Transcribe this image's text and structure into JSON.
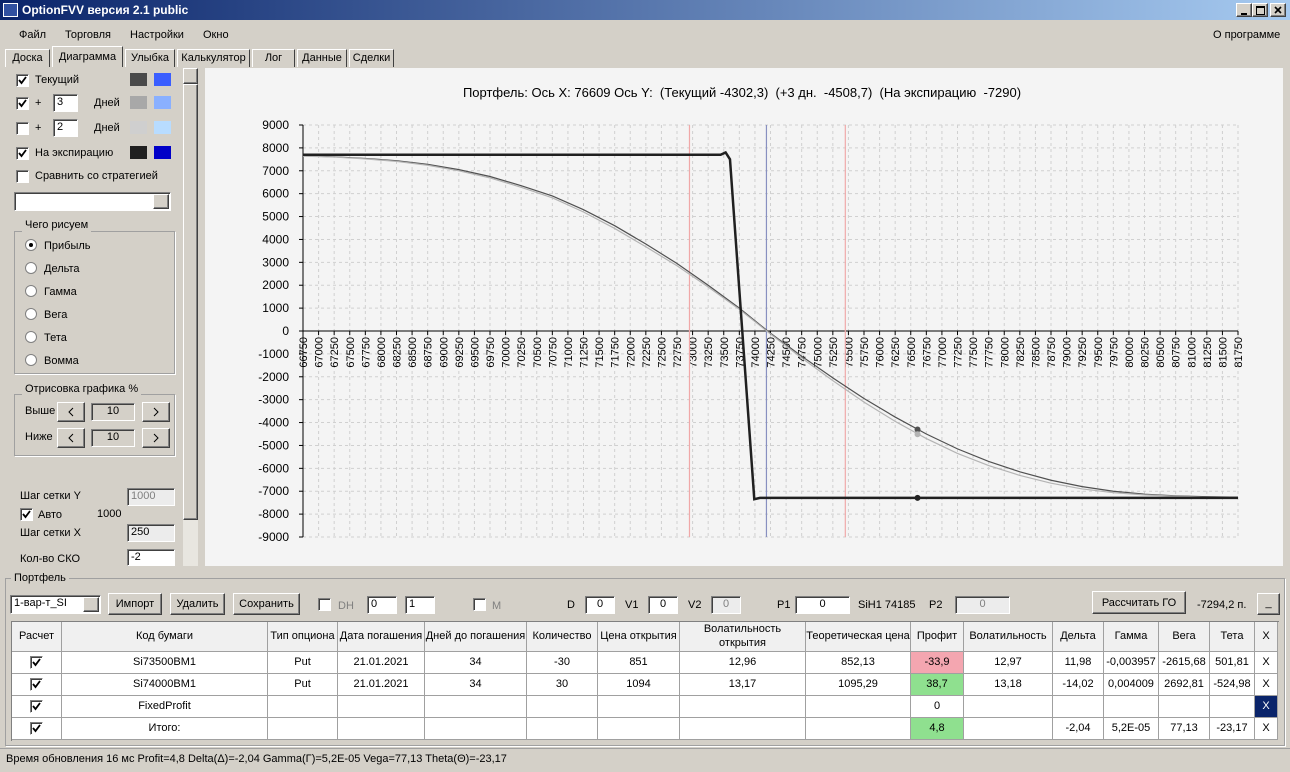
{
  "window": {
    "title": "OptionFVV версия 2.1 public"
  },
  "menu": {
    "items": [
      "Файл",
      "Торговля",
      "Настройки",
      "Окно"
    ],
    "about": "О программе"
  },
  "tabs": [
    "Доска",
    "Диаграмма",
    "Улыбка",
    "Калькулятор",
    "Лог",
    "Данные",
    "Сделки"
  ],
  "left_panel": {
    "curves": [
      {
        "label": "Текущий",
        "checked": true,
        "colors": [
          "#4a4a4a",
          "#3a5eff"
        ]
      },
      {
        "prefix": "+",
        "days": "3",
        "label": "Дней",
        "checked": true,
        "colors": [
          "#a8a8a8",
          "#8ab0ff"
        ]
      },
      {
        "prefix": "+",
        "days": "2",
        "label": "Дней",
        "checked": false,
        "colors": [
          "#cfcfcf",
          "#b8dcff"
        ]
      },
      {
        "label": "На экспирацию",
        "checked": true,
        "colors": [
          "#202020",
          "#0000c8"
        ]
      }
    ],
    "compare": {
      "label": "Сравнить со стратегией",
      "checked": false
    },
    "draw_group": {
      "title": "Чего рисуем",
      "options": [
        "Прибыль",
        "Дельта",
        "Гамма",
        "Вега",
        "Тета",
        "Вомма"
      ],
      "selected": 0
    },
    "percent_group": {
      "title": "Отрисовка графика %",
      "rows": [
        {
          "label": "Выше",
          "value": "10"
        },
        {
          "label": "Ниже",
          "value": "10"
        }
      ]
    },
    "grid_y": {
      "label": "Шаг сетки Y",
      "value": "1000"
    },
    "auto": {
      "label": "Авто",
      "checked": true,
      "value": "1000"
    },
    "grid_x": {
      "label": "Шаг сетки X",
      "value": "250"
    },
    "sko": {
      "label": "Кол-во СКО",
      "value": "-2"
    }
  },
  "chart_data": {
    "type": "line",
    "title": "Портфель: Ось X: 76609 Ось Y:  (Текущий -4302,3)  (+3 дн.  -4508,7)  (На экспирацию  -7290)",
    "xlim": [
      66750,
      81750
    ],
    "ylim": [
      -9000,
      9000
    ],
    "xticks": [
      66750,
      67000,
      67250,
      67500,
      67750,
      68000,
      68250,
      68500,
      68750,
      69000,
      69250,
      69500,
      69750,
      70000,
      70250,
      70500,
      70750,
      71000,
      71250,
      71500,
      71750,
      72000,
      72250,
      72500,
      72750,
      73000,
      73250,
      73500,
      73750,
      74000,
      74250,
      74500,
      74750,
      75000,
      75250,
      75500,
      75750,
      76000,
      76250,
      76500,
      76750,
      77000,
      77250,
      77500,
      77750,
      78000,
      78250,
      78500,
      78750,
      79000,
      79250,
      79500,
      79750,
      80000,
      80250,
      80500,
      80750,
      81000,
      81250,
      81500,
      81750
    ],
    "yticks": [
      -9000,
      -8000,
      -7000,
      -6000,
      -5000,
      -4000,
      -3000,
      -2000,
      -1000,
      0,
      1000,
      2000,
      3000,
      4000,
      5000,
      6000,
      7000,
      8000,
      9000
    ],
    "grid": true,
    "series": [
      {
        "name": "Текущий",
        "color": "#505050",
        "width": 1.2,
        "x": [
          66750,
          67250,
          67750,
          68250,
          68750,
          69250,
          69750,
          70250,
          70750,
          71250,
          71750,
          72250,
          72750,
          73250,
          73750,
          74250,
          74750,
          75250,
          75750,
          76250,
          76750,
          77250,
          77750,
          78250,
          78750,
          79250,
          79750,
          80250,
          80750,
          81250,
          81750
        ],
        "values": [
          7650,
          7610,
          7540,
          7440,
          7280,
          7050,
          6750,
          6350,
          5900,
          5300,
          4600,
          3800,
          2950,
          2000,
          1000,
          -100,
          -1100,
          -2050,
          -2950,
          -3760,
          -4500,
          -5150,
          -5700,
          -6150,
          -6520,
          -6800,
          -7000,
          -7130,
          -7200,
          -7240,
          -7260
        ]
      },
      {
        "name": "+3 дн.",
        "color": "#b4b4b4",
        "width": 1.2,
        "x": [
          66750,
          67250,
          67750,
          68250,
          68750,
          69250,
          69750,
          70250,
          70750,
          71250,
          71750,
          72250,
          72750,
          73250,
          73750,
          74250,
          74750,
          75250,
          75750,
          76250,
          76750,
          77250,
          77750,
          78250,
          78750,
          79250,
          79750,
          80250,
          80750,
          81250,
          81750
        ],
        "values": [
          7640,
          7600,
          7520,
          7410,
          7240,
          7000,
          6690,
          6280,
          5820,
          5200,
          4480,
          3680,
          2850,
          1920,
          950,
          -130,
          -1180,
          -2170,
          -3110,
          -3950,
          -4700,
          -5350,
          -5880,
          -6310,
          -6650,
          -6900,
          -7060,
          -7160,
          -7220,
          -7255,
          -7275
        ]
      },
      {
        "name": "На экспирацию",
        "color": "#202020",
        "width": 2.5,
        "x": [
          66750,
          73450,
          73530,
          73600,
          73990,
          74080,
          81750
        ],
        "values": [
          7700,
          7700,
          7800,
          7500,
          -7350,
          -7290,
          -7290
        ]
      }
    ],
    "vlines": [
      {
        "x": 72950,
        "color": "#f0a8a8"
      },
      {
        "x": 74185,
        "color": "#8890c0"
      },
      {
        "x": 75450,
        "color": "#f0a8a8"
      }
    ],
    "cursor": {
      "x": 76609,
      "values": [
        -4302.3,
        -4508.7,
        -7290
      ]
    }
  },
  "portfolio": {
    "title": "Портфель",
    "toolbar": {
      "select": "1-вар-т_SI",
      "import": "Импорт",
      "delete": "Удалить",
      "save": "Сохранить",
      "dh": "DH",
      "spin1": "0",
      "spin2": "1",
      "m": "M",
      "d_label": "D",
      "d": "0",
      "v1_label": "V1",
      "v1": "0",
      "v2_label": "V2",
      "v2": "0",
      "p1_label": "P1",
      "p1": "0",
      "underlying": "SiH1 74185",
      "p2_label": "P2",
      "p2": "0",
      "calc": "Рассчитать ГО",
      "go": "-7294,2 п.",
      "minimize": "_"
    },
    "table": {
      "headers": [
        "Расчет",
        "Код бумаги",
        "Тип опциона",
        "Дата погашения",
        "Дней до погашения",
        "Количество",
        "Цена открытия",
        "Волатильность открытия",
        "Теоретическая цена",
        "Профит",
        "Волатильность",
        "Дельта",
        "Гамма",
        "Вега",
        "Тета",
        "X"
      ],
      "delete_label": "X",
      "rows": [
        {
          "checked": true,
          "profit_color": "#f4a6b0",
          "cells": [
            "Si73500BM1",
            "Put",
            "21.01.2021",
            "34",
            "-30",
            "851",
            "12,96",
            "852,13",
            "-33,9",
            "12,97",
            "11,98",
            "-0,003957",
            "-2615,68",
            "501,81"
          ]
        },
        {
          "checked": true,
          "profit_color": "#8fe08f",
          "cells": [
            "Si74000BM1",
            "Put",
            "21.01.2021",
            "34",
            "30",
            "1094",
            "13,17",
            "1095,29",
            "38,7",
            "13,18",
            "-14,02",
            "0,004009",
            "2692,81",
            "-524,98"
          ]
        },
        {
          "checked": true,
          "profit_color": null,
          "cells": [
            "FixedProfit",
            null,
            null,
            null,
            null,
            null,
            null,
            null,
            "0",
            null,
            null,
            null,
            null,
            null
          ]
        },
        {
          "checked": true,
          "profit_color": "#8fe08f",
          "cells": [
            "Итого:",
            null,
            null,
            null,
            null,
            null,
            null,
            null,
            "4,8",
            null,
            "-2,04",
            "5,2E-05",
            "77,13",
            "-23,17"
          ]
        }
      ]
    }
  },
  "status": "Время обновления 16 мс  Profit=4,8 Delta(Δ)=-2,04 Gamma(Γ)=5,2E-05 Vega=77,13 Theta(Θ)=-23,17"
}
